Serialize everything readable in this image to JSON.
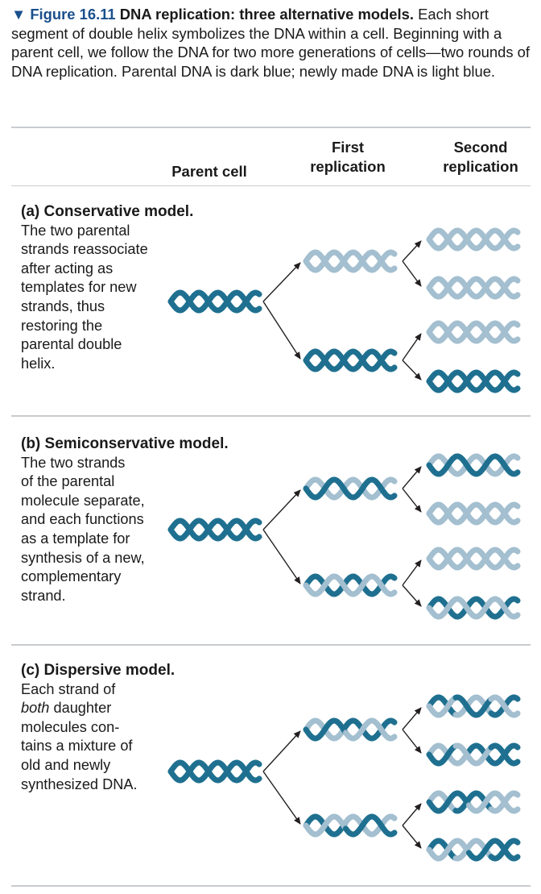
{
  "caption": {
    "triangle": "▼",
    "figure_label": "Figure 16.11",
    "title": "DNA replication: three alternative models.",
    "body": "Each short segment of double helix symbolizes the DNA within a cell. Beginning with a parent cell, we follow the DNA for two more generations of cells—two rounds of DNA replication. Parental DNA is dark blue; newly made DNA is light blue."
  },
  "columns": {
    "parent": "Parent cell",
    "first_line1": "First",
    "first_line2": "replication",
    "second_line1": "Second",
    "second_line2": "replication"
  },
  "colors": {
    "parental": "#1f7090",
    "new": "#a3bfd0",
    "arrow": "#231f20",
    "rule": "#c8cbce"
  },
  "sections": [
    {
      "title": "(a) Conservative model.",
      "lines": [
        "The two parental",
        "strands reassociate",
        "after acting as",
        "templates for new",
        "strands, thus",
        "restoring the",
        "parental double",
        "helix."
      ]
    },
    {
      "title": "(b) Semiconservative model.",
      "lines": [
        "The two strands",
        "of the parental",
        "molecule separate,",
        "and each functions",
        "as a template for",
        "synthesis of a new,",
        "complementary",
        "strand."
      ]
    },
    {
      "title": "(c) Dispersive model.",
      "lines": [
        "Each strand of",
        "both daughter",
        "molecules con-",
        "tains a mixture of",
        "old and newly",
        "synthesized DNA."
      ]
    }
  ]
}
